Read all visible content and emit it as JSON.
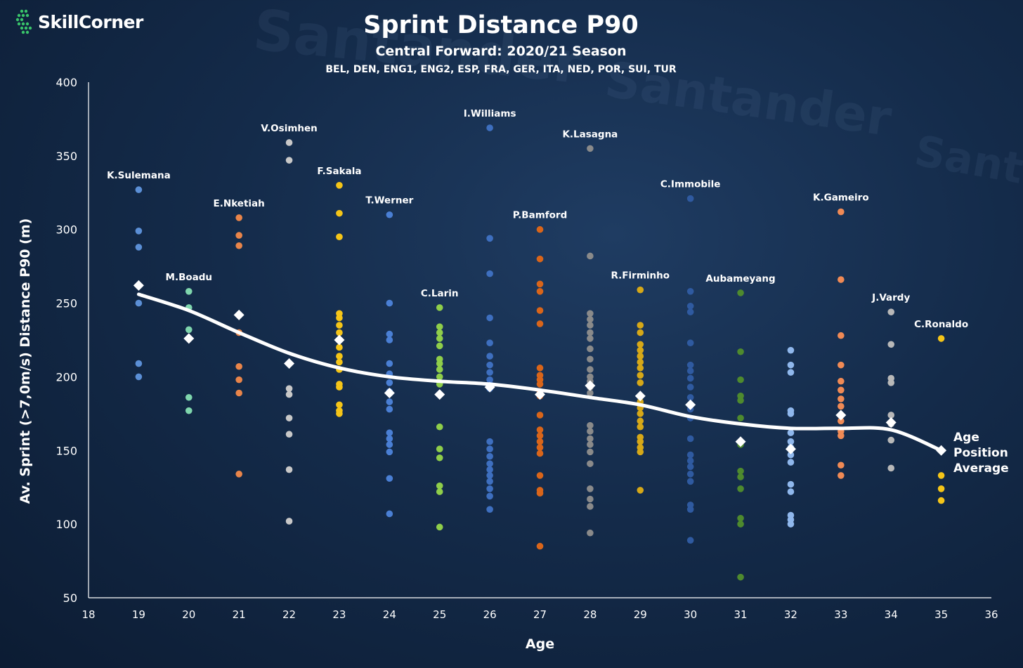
{
  "brand": {
    "name": "SkillCorner"
  },
  "background_words": [
    "Santander",
    "Santander",
    "Santander"
  ],
  "titles": {
    "title": "Sprint Distance P90",
    "subtitle": "Central Forward: 2020/21 Season",
    "leagues": "BEL, DEN, ENG1, ENG2, ESP, FRA, GER, ITA, NED, POR, SUI, TUR"
  },
  "colors": {
    "background": "#132a48",
    "average": "#ffffff",
    "axis": "#ffffff"
  },
  "chart_data": {
    "type": "scatter",
    "title": "Sprint Distance P90",
    "subtitle": "Central Forward: 2020/21 Season",
    "xlabel": "Age",
    "ylabel": "Av. Sprint (>7,0m/s) Distance P90 (m)",
    "xlim": [
      18,
      36
    ],
    "ylim": [
      50,
      400
    ],
    "x_ticks": [
      18,
      19,
      20,
      21,
      22,
      23,
      24,
      25,
      26,
      27,
      28,
      29,
      30,
      31,
      32,
      33,
      34,
      35,
      36
    ],
    "y_ticks": [
      50,
      100,
      150,
      200,
      250,
      300,
      350,
      400
    ],
    "grid": false,
    "groups": [
      {
        "age": 19,
        "color": "#5b8fd6",
        "values": [
          327,
          299,
          288,
          250,
          209,
          200
        ]
      },
      {
        "age": 20,
        "color": "#7fd6ad",
        "values": [
          258,
          247,
          232,
          186,
          177
        ]
      },
      {
        "age": 21,
        "color": "#e9854a",
        "values": [
          308,
          296,
          289,
          230,
          207,
          198,
          189,
          134
        ]
      },
      {
        "age": 22,
        "color": "#c8c8c8",
        "values": [
          359,
          347,
          192,
          188,
          172,
          161,
          137,
          102
        ]
      },
      {
        "age": 23,
        "color": "#f5c518",
        "values": [
          330,
          311,
          295,
          243,
          240,
          235,
          230,
          225,
          220,
          214,
          210,
          205,
          195,
          193,
          181,
          177,
          175
        ]
      },
      {
        "age": 24,
        "color": "#4a7fd4",
        "values": [
          310,
          250,
          229,
          225,
          209,
          202,
          196,
          190,
          183,
          178,
          162,
          158,
          154,
          149,
          131,
          107
        ]
      },
      {
        "age": 25,
        "color": "#8fce4a",
        "values": [
          247,
          234,
          230,
          226,
          221,
          212,
          209,
          205,
          200,
          195,
          166,
          151,
          145,
          126,
          122,
          98
        ]
      },
      {
        "age": 26,
        "color": "#3e6fbf",
        "values": [
          369,
          294,
          270,
          240,
          223,
          214,
          208,
          203,
          198,
          195,
          192,
          156,
          151,
          146,
          141,
          137,
          133,
          129,
          124,
          119,
          110
        ]
      },
      {
        "age": 27,
        "color": "#d9651a",
        "values": [
          300,
          280,
          263,
          258,
          245,
          236,
          206,
          201,
          198,
          195,
          190,
          187,
          174,
          164,
          160,
          156,
          152,
          148,
          133,
          123,
          121,
          85
        ]
      },
      {
        "age": 28,
        "color": "#8a8a8a",
        "values": [
          355,
          282,
          243,
          239,
          235,
          230,
          226,
          219,
          212,
          205,
          200,
          197,
          193,
          189,
          167,
          163,
          158,
          154,
          149,
          141,
          124,
          117,
          112,
          94
        ]
      },
      {
        "age": 29,
        "color": "#d6a818",
        "values": [
          259,
          235,
          230,
          222,
          218,
          214,
          210,
          206,
          201,
          196,
          183,
          179,
          175,
          170,
          166,
          159,
          156,
          152,
          149,
          123
        ]
      },
      {
        "age": 30,
        "color": "#2f5aa0",
        "values": [
          321,
          258,
          248,
          244,
          223,
          208,
          204,
          199,
          193,
          186,
          178,
          172,
          158,
          147,
          143,
          139,
          134,
          129,
          113,
          110,
          89
        ]
      },
      {
        "age": 31,
        "color": "#4e8a2e",
        "values": [
          257,
          217,
          198,
          187,
          184,
          172,
          154,
          136,
          132,
          124,
          104,
          100,
          64
        ]
      },
      {
        "age": 32,
        "color": "#8fb7ec",
        "values": [
          218,
          208,
          203,
          177,
          175,
          162,
          156,
          152,
          147,
          142,
          127,
          122,
          106,
          103,
          100
        ]
      },
      {
        "age": 33,
        "color": "#f08a55",
        "values": [
          312,
          266,
          228,
          208,
          197,
          191,
          185,
          180,
          174,
          170,
          163,
          160,
          140,
          133
        ]
      },
      {
        "age": 34,
        "color": "#b8b8b8",
        "values": [
          244,
          222,
          199,
          196,
          174,
          168,
          157,
          138
        ]
      },
      {
        "age": 35,
        "color": "#f5c518",
        "values": [
          226,
          133,
          124,
          116
        ]
      }
    ],
    "average_markers": [
      {
        "age": 19,
        "value": 262
      },
      {
        "age": 20,
        "value": 226
      },
      {
        "age": 21,
        "value": 242
      },
      {
        "age": 22,
        "value": 209
      },
      {
        "age": 23,
        "value": 225
      },
      {
        "age": 24,
        "value": 189
      },
      {
        "age": 25,
        "value": 188
      },
      {
        "age": 26,
        "value": 193
      },
      {
        "age": 27,
        "value": 188
      },
      {
        "age": 28,
        "value": 194
      },
      {
        "age": 29,
        "value": 187
      },
      {
        "age": 30,
        "value": 181
      },
      {
        "age": 31,
        "value": 156
      },
      {
        "age": 32,
        "value": 151
      },
      {
        "age": 33,
        "value": 174
      },
      {
        "age": 34,
        "value": 169
      },
      {
        "age": 35,
        "value": 150
      }
    ],
    "trend_line": [
      {
        "age": 19,
        "value": 256
      },
      {
        "age": 20,
        "value": 245
      },
      {
        "age": 21,
        "value": 230
      },
      {
        "age": 22,
        "value": 216
      },
      {
        "age": 23,
        "value": 206
      },
      {
        "age": 24,
        "value": 200
      },
      {
        "age": 25,
        "value": 197
      },
      {
        "age": 26,
        "value": 195
      },
      {
        "age": 27,
        "value": 191
      },
      {
        "age": 28,
        "value": 186
      },
      {
        "age": 29,
        "value": 181
      },
      {
        "age": 30,
        "value": 173
      },
      {
        "age": 31,
        "value": 168
      },
      {
        "age": 32,
        "value": 165
      },
      {
        "age": 33,
        "value": 165
      },
      {
        "age": 34,
        "value": 164
      },
      {
        "age": 35,
        "value": 150
      }
    ],
    "trend_label": [
      "Age",
      "Position",
      "Average"
    ],
    "annotations": [
      {
        "label": "K.Sulemana",
        "age": 19,
        "value": 327
      },
      {
        "label": "M.Boadu",
        "age": 20,
        "value": 258
      },
      {
        "label": "E.Nketiah",
        "age": 21,
        "value": 308
      },
      {
        "label": "V.Osimhen",
        "age": 22,
        "value": 359
      },
      {
        "label": "F.Sakala",
        "age": 23,
        "value": 330
      },
      {
        "label": "T.Werner",
        "age": 24,
        "value": 310
      },
      {
        "label": "C.Larin",
        "age": 25,
        "value": 247
      },
      {
        "label": "I.Williams",
        "age": 26,
        "value": 369
      },
      {
        "label": "P.Bamford",
        "age": 27,
        "value": 300
      },
      {
        "label": "K.Lasagna",
        "age": 28,
        "value": 355
      },
      {
        "label": "R.Firminho",
        "age": 29,
        "value": 259
      },
      {
        "label": "C.Immobile",
        "age": 30,
        "value": 321
      },
      {
        "label": "Aubameyang",
        "age": 31,
        "value": 257
      },
      {
        "label": "K.Gameiro",
        "age": 33,
        "value": 312
      },
      {
        "label": "J.Vardy",
        "age": 34,
        "value": 244
      },
      {
        "label": "C.Ronaldo",
        "age": 35,
        "value": 226
      }
    ]
  }
}
